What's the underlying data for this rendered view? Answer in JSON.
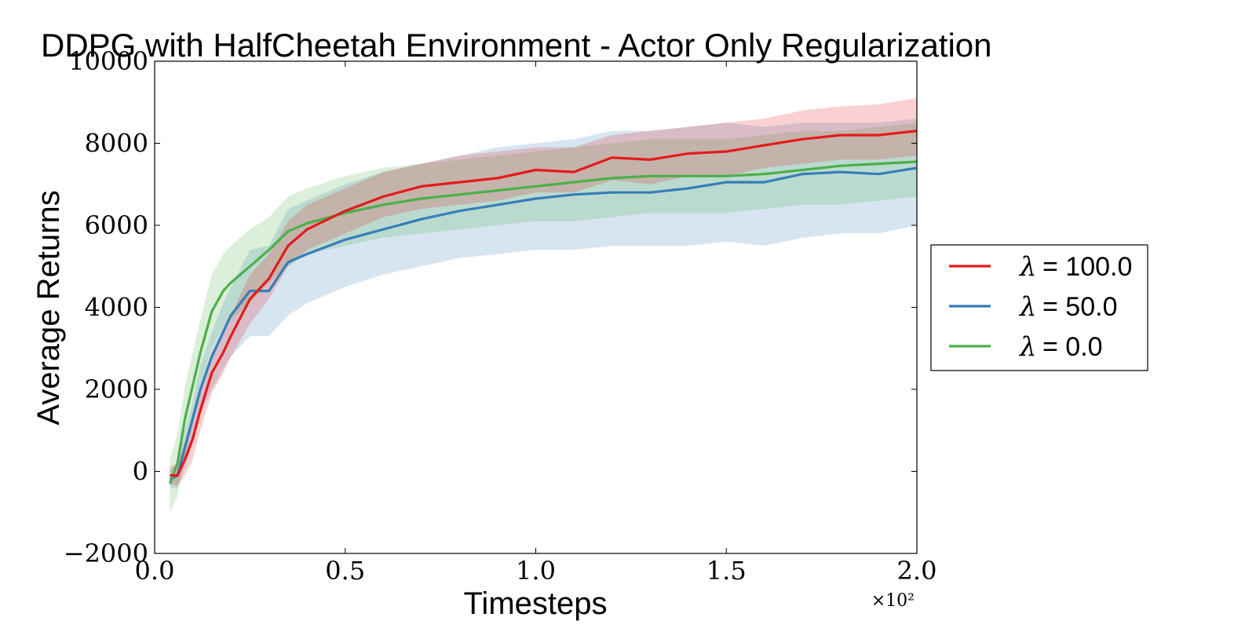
{
  "chart_data": {
    "type": "line",
    "title": "DDPG with HalfCheetah Environment - Actor Only Regularization",
    "xlabel": "Timesteps",
    "ylabel": "Average Returns",
    "x_multiplier_label": "×10²",
    "xlim": [
      0.0,
      2.0
    ],
    "ylim": [
      -2000,
      10000
    ],
    "xticks": [
      0.0,
      0.5,
      1.0,
      1.5,
      2.0
    ],
    "xtick_labels": [
      "0.0",
      "0.5",
      "1.0",
      "1.5",
      "2.0"
    ],
    "yticks": [
      -2000,
      0,
      2000,
      4000,
      6000,
      8000,
      10000
    ],
    "ytick_labels": [
      "−2000",
      "0",
      "2000",
      "4000",
      "6000",
      "8000",
      "10000"
    ],
    "grid": false,
    "legend_position": "right, outside plot",
    "x": [
      0.04,
      0.06,
      0.08,
      0.1,
      0.12,
      0.15,
      0.18,
      0.2,
      0.25,
      0.3,
      0.35,
      0.4,
      0.5,
      0.6,
      0.7,
      0.8,
      0.9,
      1.0,
      1.1,
      1.2,
      1.3,
      1.4,
      1.5,
      1.6,
      1.7,
      1.8,
      1.9,
      2.0
    ],
    "series": [
      {
        "name": "λ = 100.0",
        "legend_symbol": "λ",
        "legend_value": "= 100.0",
        "color": "#e41a1c",
        "values": [
          -100,
          -100,
          300,
          800,
          1500,
          2400,
          2900,
          3300,
          4200,
          4700,
          5500,
          5900,
          6350,
          6700,
          6950,
          7050,
          7150,
          7350,
          7300,
          7650,
          7600,
          7750,
          7800,
          7950,
          8100,
          8200,
          8200,
          8300
        ],
        "upper": [
          100,
          200,
          700,
          1300,
          2000,
          2900,
          3400,
          3800,
          4800,
          5300,
          6100,
          6500,
          6900,
          7300,
          7500,
          7700,
          7800,
          7900,
          7900,
          8200,
          8300,
          8400,
          8500,
          8600,
          8800,
          8900,
          8950,
          9100
        ],
        "lower": [
          -300,
          -350,
          -100,
          300,
          1000,
          1900,
          2400,
          2800,
          3600,
          4200,
          5000,
          5400,
          5800,
          6200,
          6400,
          6500,
          6600,
          6800,
          6800,
          7100,
          7000,
          7200,
          7200,
          7400,
          7500,
          7600,
          7600,
          7700
        ]
      },
      {
        "name": "λ = 50.0",
        "legend_symbol": "λ",
        "legend_value": "= 50.0",
        "color": "#377eb8",
        "values": [
          -200,
          -100,
          600,
          1300,
          2000,
          2800,
          3400,
          3800,
          4400,
          4400,
          5100,
          5300,
          5650,
          5900,
          6150,
          6350,
          6500,
          6650,
          6750,
          6800,
          6800,
          6900,
          7050,
          7050,
          7250,
          7300,
          7250,
          7400
        ],
        "upper": [
          0,
          200,
          1000,
          1700,
          2600,
          3400,
          4100,
          4500,
          5400,
          5500,
          6400,
          6600,
          7000,
          7300,
          7500,
          7700,
          7900,
          8000,
          8100,
          8300,
          8300,
          8400,
          8500,
          8400,
          8500,
          8500,
          8500,
          8600
        ],
        "lower": [
          -400,
          -400,
          100,
          700,
          1400,
          2000,
          2500,
          2800,
          3300,
          3300,
          3800,
          4100,
          4500,
          4800,
          5000,
          5200,
          5300,
          5400,
          5400,
          5500,
          5500,
          5500,
          5600,
          5500,
          5700,
          5800,
          5800,
          6000
        ]
      },
      {
        "name": "λ = 0.0",
        "legend_symbol": "λ",
        "legend_value": "= 0.0",
        "color": "#4daf4a",
        "values": [
          -300,
          200,
          1300,
          2100,
          2900,
          3900,
          4400,
          4600,
          5000,
          5400,
          5850,
          6050,
          6300,
          6500,
          6650,
          6750,
          6850,
          6950,
          7050,
          7150,
          7200,
          7200,
          7200,
          7250,
          7350,
          7450,
          7500,
          7550
        ],
        "upper": [
          300,
          900,
          2100,
          2900,
          3700,
          4800,
          5300,
          5500,
          5900,
          6200,
          6700,
          6900,
          7200,
          7400,
          7500,
          7600,
          7700,
          7800,
          7900,
          8000,
          8100,
          8100,
          8100,
          8200,
          8300,
          8300,
          8400,
          8500
        ],
        "lower": [
          -1000,
          -600,
          400,
          1200,
          2100,
          3000,
          3500,
          3700,
          4100,
          4600,
          5000,
          5300,
          5500,
          5700,
          5800,
          5900,
          6000,
          6100,
          6100,
          6200,
          6300,
          6300,
          6300,
          6400,
          6500,
          6500,
          6600,
          6700
        ]
      }
    ]
  }
}
